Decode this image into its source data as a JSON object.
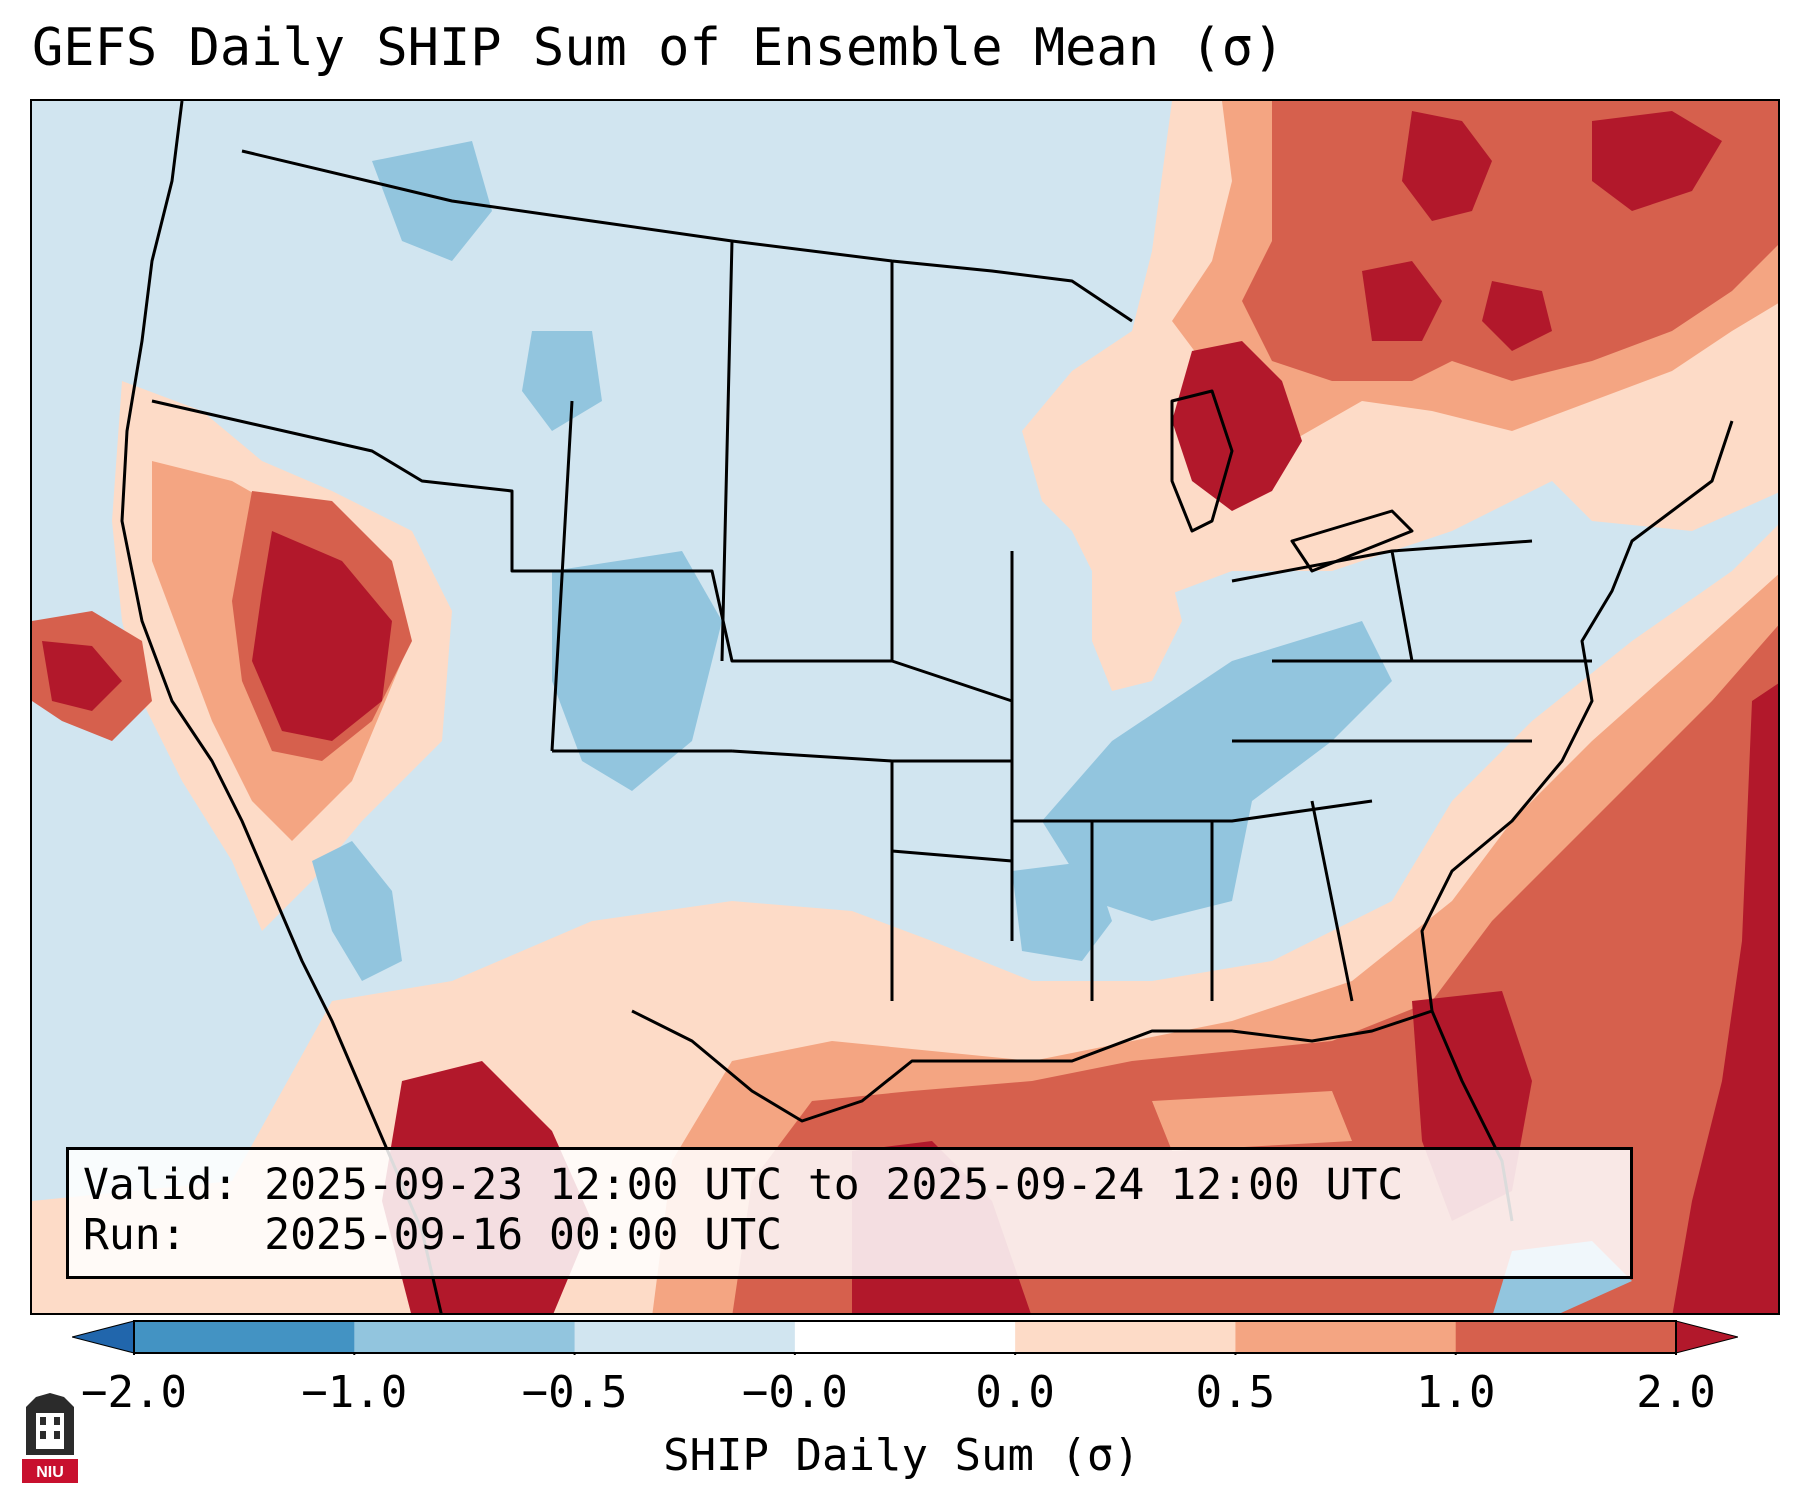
{
  "title": "GEFS Daily SHIP Sum of Ensemble Mean (σ)",
  "info": {
    "valid_label": "Valid:",
    "valid_value": "2025-09-23 12:00 UTC to 2025-09-24 12:00 UTC",
    "run_label": "Run:",
    "run_value": "2025-09-16 00:00 UTC"
  },
  "colorbar": {
    "label": "SHIP Daily Sum (σ)",
    "ticks": [
      "−2.0",
      "−1.0",
      "−0.5",
      "−0.0",
      "0.0",
      "0.5",
      "1.0",
      "2.0"
    ],
    "bins": [
      {
        "from": -2.0,
        "to": -1.0,
        "color": "#4393c3"
      },
      {
        "from": -1.0,
        "to": -0.5,
        "color": "#92c5de"
      },
      {
        "from": -0.5,
        "to": -0.0,
        "color": "#d1e5f0"
      },
      {
        "from": -0.0,
        "to": 0.0,
        "color": "#ffffff"
      },
      {
        "from": 0.0,
        "to": 0.5,
        "color": "#fddbc7"
      },
      {
        "from": 0.5,
        "to": 1.0,
        "color": "#f4a582"
      },
      {
        "from": 1.0,
        "to": 2.0,
        "color": "#d6604d"
      }
    ],
    "under_color": "#2166ac",
    "over_color": "#b2182b"
  },
  "map_colors": {
    "land_base": "#d1e5f0",
    "neg_strong": "#92c5de",
    "pos_weak": "#fddbc7",
    "pos_mid": "#f4a582",
    "pos_strong": "#d6604d",
    "pos_extreme": "#b2182b"
  },
  "logo": {
    "text": "NIU",
    "color": "#c8102e"
  }
}
